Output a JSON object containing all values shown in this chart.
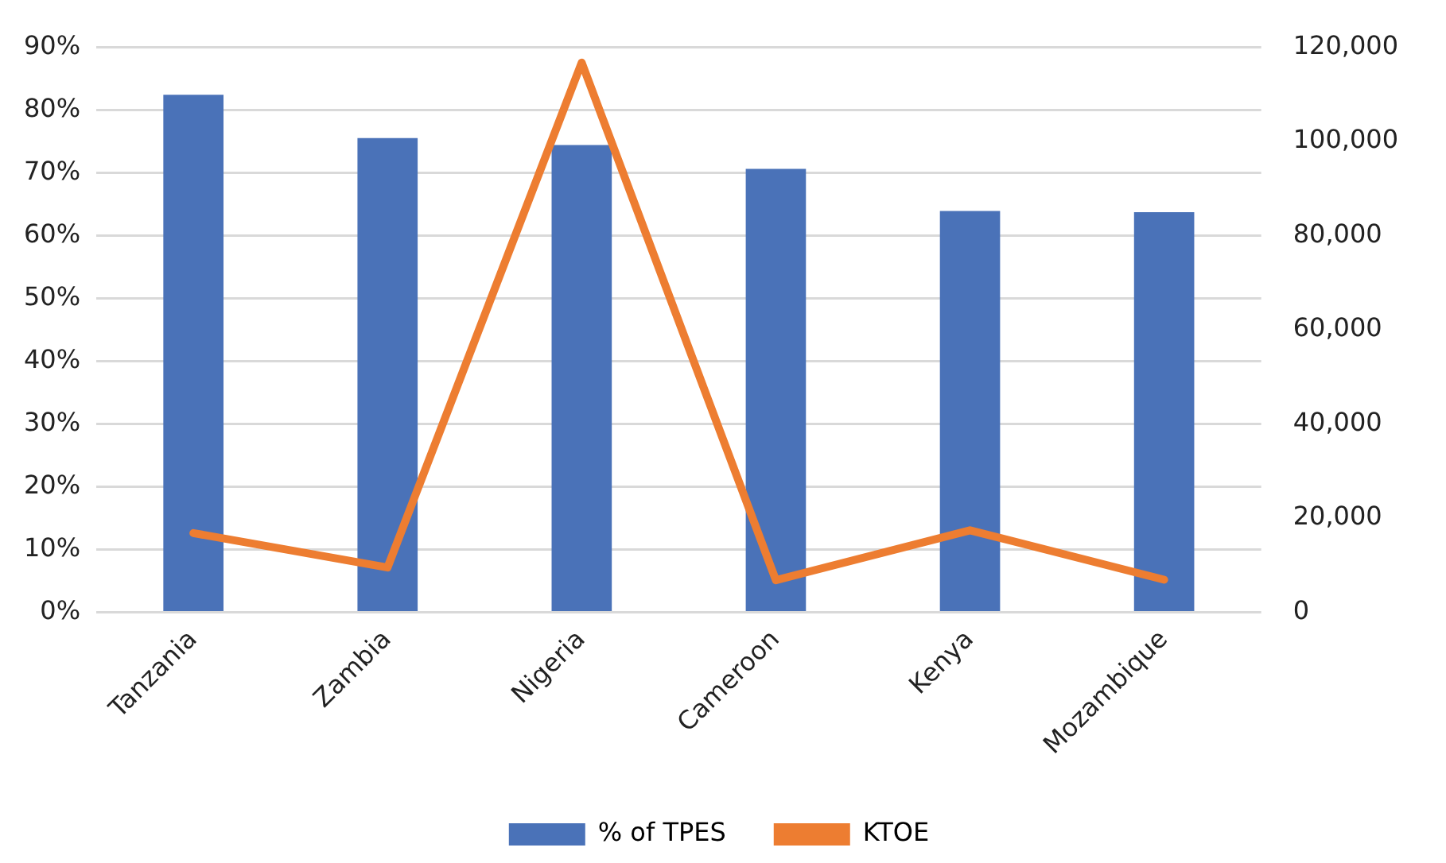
{
  "chart_data": {
    "type": "bar",
    "categories": [
      "Tanzania",
      "Zambia",
      "Nigeria",
      "Cameroon",
      "Kenya",
      "Mozambique"
    ],
    "series": [
      {
        "name": "% of TPES",
        "color": "#4a72b8",
        "values": [
          82.4,
          75.5,
          74.4,
          70.6,
          63.9,
          63.7
        ]
      },
      {
        "name": "KTOE",
        "type": "line",
        "axis": "y2",
        "color": "#ed7d31",
        "values": [
          16800,
          9500,
          116700,
          6800,
          17400,
          6900
        ]
      }
    ],
    "ylim": [
      0,
      90
    ],
    "yticks": [
      {
        "value": 0,
        "label": "0%"
      },
      {
        "value": 10,
        "label": "10%"
      },
      {
        "value": 20,
        "label": "20%"
      },
      {
        "value": 30,
        "label": "30%"
      },
      {
        "value": 40,
        "label": "40%"
      },
      {
        "value": 50,
        "label": "50%"
      },
      {
        "value": 60,
        "label": "60%"
      },
      {
        "value": 70,
        "label": "70%"
      },
      {
        "value": 80,
        "label": "80%"
      },
      {
        "value": 90,
        "label": "90%"
      }
    ],
    "y2lim": [
      0,
      120000
    ],
    "y2ticks": [
      {
        "value": 0,
        "label": "0"
      },
      {
        "value": 20000,
        "label": "20,000"
      },
      {
        "value": 40000,
        "label": "40,000"
      },
      {
        "value": 60000,
        "label": "60,000"
      },
      {
        "value": 80000,
        "label": "80,000"
      },
      {
        "value": 100000,
        "label": "100,000"
      },
      {
        "value": 120000,
        "label": "120,000"
      }
    ],
    "grid": "y",
    "legend": "bottom",
    "marker": "none"
  }
}
